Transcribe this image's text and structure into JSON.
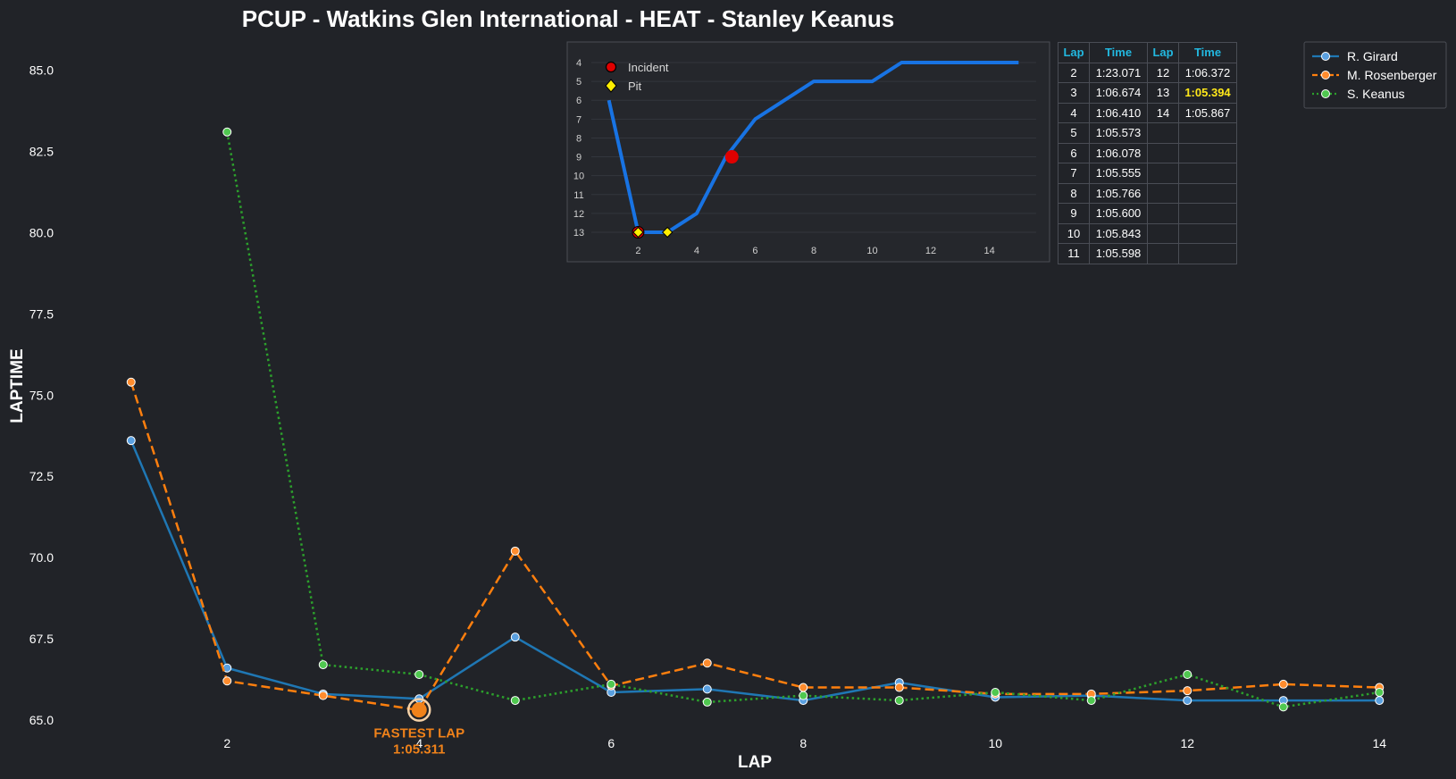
{
  "chart_data": [
    {
      "type": "line",
      "title": "PCUP - Watkins Glen International - HEAT - Stanley Keanus",
      "xlabel": "LAP",
      "ylabel": "LAPTIME",
      "xlim": [
        0.5,
        14.5
      ],
      "ylim": [
        64.2,
        86.2
      ],
      "xticks": [
        2,
        4,
        6,
        8,
        10,
        12,
        14
      ],
      "yticks": [
        65.0,
        67.5,
        70.0,
        72.5,
        75.0,
        77.5,
        80.0,
        82.5,
        85.0
      ],
      "x": [
        1,
        2,
        3,
        4,
        5,
        6,
        7,
        8,
        9,
        10,
        11,
        12,
        13,
        14
      ],
      "legend": "top-right",
      "grid": false,
      "series": [
        {
          "name": "R. Girard",
          "color": "#1f77b4",
          "style": "solid",
          "marker_fill": "#5aa0e0",
          "values": [
            73.6,
            66.6,
            65.8,
            65.65,
            67.55,
            65.85,
            65.95,
            65.6,
            66.15,
            65.7,
            65.75,
            65.6,
            65.6,
            65.6
          ]
        },
        {
          "name": "M. Rosenberger",
          "color": "#ff7f0e",
          "style": "dashed",
          "marker_fill": "#ff8c2e",
          "values": [
            75.4,
            66.2,
            65.75,
            65.3,
            70.2,
            66.05,
            66.75,
            66.0,
            66.0,
            65.8,
            65.8,
            65.9,
            66.1,
            66.0
          ]
        },
        {
          "name": "S. Keanus",
          "color": "#2ca02c",
          "style": "dotted",
          "marker_fill": "#50c850",
          "values": [
            null,
            83.1,
            66.7,
            66.4,
            65.6,
            66.1,
            65.55,
            65.75,
            65.6,
            65.85,
            65.6,
            66.4,
            65.4,
            65.85
          ]
        }
      ],
      "annotations": [
        {
          "text_line1": "FASTEST LAP",
          "text_line2": "1:05.311",
          "x": 4,
          "y": 65.311,
          "color": "#f0821a"
        }
      ]
    },
    {
      "type": "line",
      "title": "",
      "ylim": [
        4,
        13
      ],
      "y_inverted": true,
      "xlim": [
        0.4,
        15.6
      ],
      "xticks": [
        2,
        4,
        6,
        8,
        10,
        12,
        14
      ],
      "yticks": [
        4,
        5,
        6,
        7,
        8,
        9,
        10,
        11,
        12,
        13
      ],
      "x": [
        1,
        2,
        3,
        4,
        5,
        6,
        7,
        8,
        9,
        10,
        11,
        12,
        13,
        14,
        15
      ],
      "series": [
        {
          "name": "position",
          "color": "#1873e3",
          "values": [
            6,
            13,
            13,
            12,
            9,
            7,
            6,
            5,
            5,
            5,
            4,
            4,
            4,
            4,
            4
          ]
        }
      ],
      "markers": [
        {
          "label": "Incident",
          "kind": "incident",
          "color": "#e00000",
          "points": [
            [
              2,
              13
            ],
            [
              5.2,
              9
            ]
          ]
        },
        {
          "label": "Pit",
          "kind": "pit",
          "color": "#ffee00",
          "points": [
            [
              2,
              13
            ],
            [
              3,
              13
            ]
          ]
        }
      ]
    }
  ],
  "lap_table": {
    "headers": [
      "Lap",
      "Time",
      "Lap",
      "Time"
    ],
    "rows": [
      [
        "2",
        "1:23.071",
        "12",
        "1:06.372"
      ],
      [
        "3",
        "1:06.674",
        "13",
        "1:05.394"
      ],
      [
        "4",
        "1:06.410",
        "14",
        "1:05.867"
      ],
      [
        "5",
        "1:05.573",
        "",
        ""
      ],
      [
        "6",
        "1:06.078",
        "",
        ""
      ],
      [
        "7",
        "1:05.555",
        "",
        ""
      ],
      [
        "8",
        "1:05.766",
        "",
        ""
      ],
      [
        "9",
        "1:05.600",
        "",
        ""
      ],
      [
        "10",
        "1:05.843",
        "",
        ""
      ],
      [
        "11",
        "1:05.598",
        "",
        ""
      ]
    ],
    "best_time": "1:05.394",
    "header_color": "#22b8e0",
    "best_color": "#ffe81a"
  },
  "colors": {
    "background": "#212328",
    "panel_border": "#4a4d55"
  }
}
